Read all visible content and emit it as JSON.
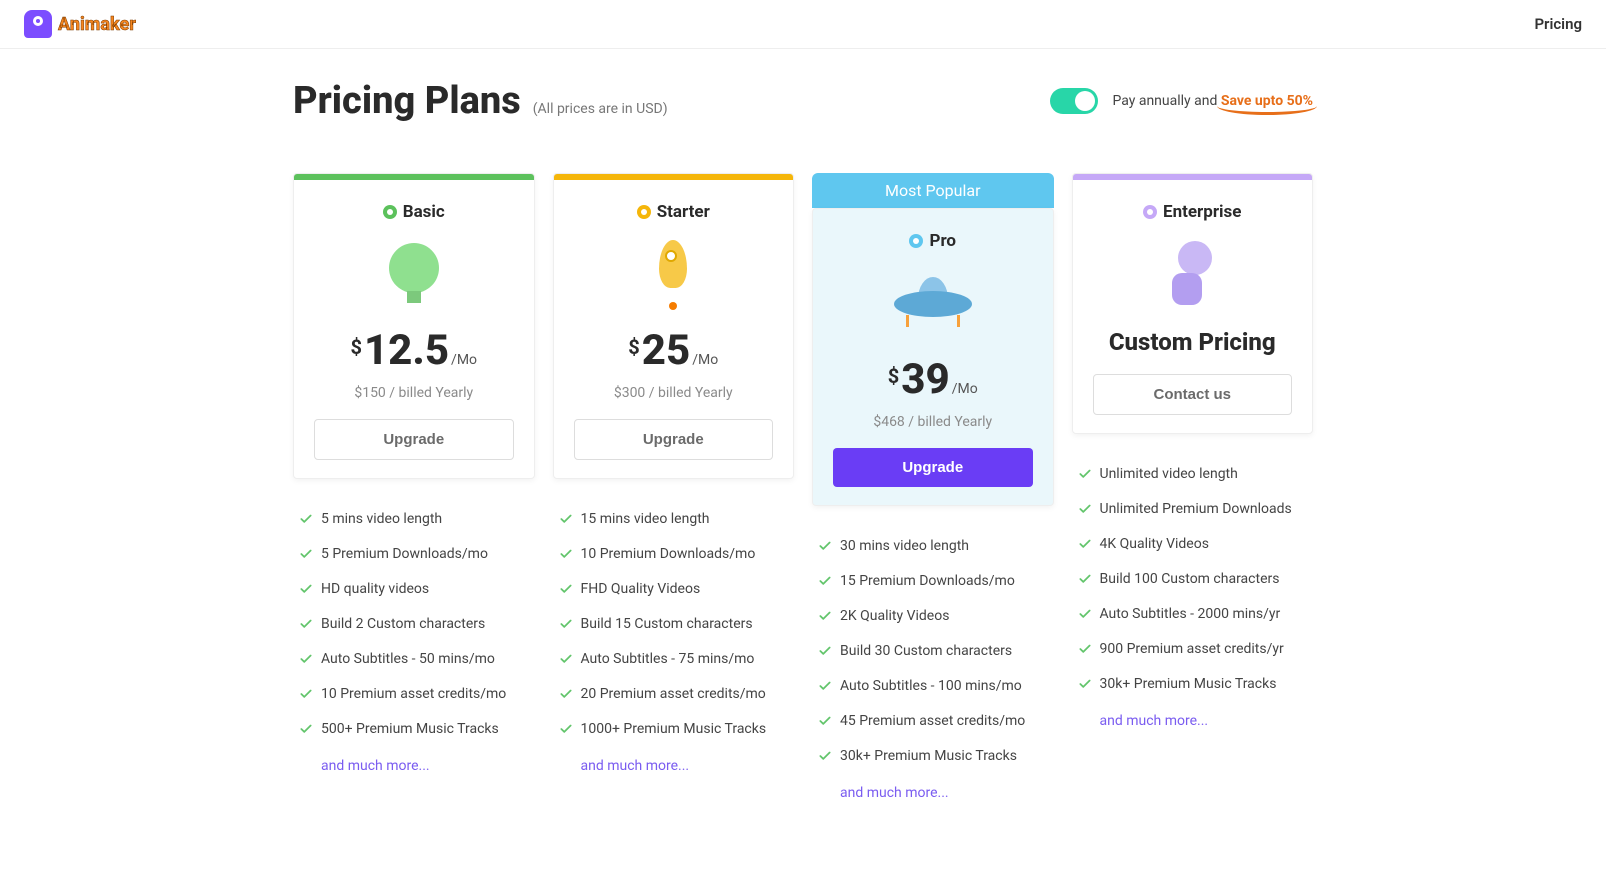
{
  "header": {
    "logo_text": "Animaker",
    "nav_pricing": "Pricing"
  },
  "title": {
    "heading": "Pricing Plans",
    "note": "(All prices are in USD)"
  },
  "toggle": {
    "prefix": "Pay annually and ",
    "save_text": "Save upto 50%",
    "on": true
  },
  "colors": {
    "basic_bar": "#5cc15c",
    "starter_bar": "#f5b60a",
    "pro_bar": "#5fc7ef",
    "enterprise_bar": "#c5a8f7",
    "cta_primary": "#6a3df5",
    "check": "#63c56c",
    "save": "#e76f1a"
  },
  "popular_badge": "Most Popular",
  "more_link": "and much more...",
  "plans": [
    {
      "key": "basic",
      "name": "Basic",
      "bullet_color": "#5cc15c",
      "bar_color": "#5cc15c",
      "currency": "$",
      "amount": "12.5",
      "suffix": "/Mo",
      "billed": "$150 / billed Yearly",
      "cta": "Upgrade",
      "cta_primary": false,
      "custom": false,
      "popular": false,
      "features": [
        "5 mins video length",
        "5 Premium Downloads/mo",
        "HD quality videos",
        "Build 2 Custom characters",
        "Auto Subtitles - 50 mins/mo",
        "10 Premium asset credits/mo",
        "500+ Premium Music Tracks"
      ]
    },
    {
      "key": "starter",
      "name": "Starter",
      "bullet_color": "#f5b60a",
      "bar_color": "#f5b60a",
      "currency": "$",
      "amount": "25",
      "suffix": "/Mo",
      "billed": "$300 / billed Yearly",
      "cta": "Upgrade",
      "cta_primary": false,
      "custom": false,
      "popular": false,
      "features": [
        "15 mins video length",
        "10 Premium Downloads/mo",
        "FHD Quality Videos",
        "Build 15 Custom characters",
        "Auto Subtitles - 75 mins/mo",
        "20 Premium asset credits/mo",
        "1000+ Premium Music Tracks"
      ]
    },
    {
      "key": "pro",
      "name": "Pro",
      "bullet_color": "#5fc7ef",
      "bar_color": "#5fc7ef",
      "currency": "$",
      "amount": "39",
      "suffix": "/Mo",
      "billed": "$468 / billed Yearly",
      "cta": "Upgrade",
      "cta_primary": true,
      "custom": false,
      "popular": true,
      "features": [
        "30 mins video length",
        "15 Premium Downloads/mo",
        "2K Quality Videos",
        "Build 30 Custom characters",
        "Auto Subtitles - 100 mins/mo",
        "45 Premium asset credits/mo",
        "30k+ Premium Music Tracks"
      ]
    },
    {
      "key": "enterprise",
      "name": "Enterprise",
      "bullet_color": "#c5a8f7",
      "bar_color": "#c5a8f7",
      "currency": "",
      "amount": "",
      "suffix": "",
      "billed": "",
      "custom_label": "Custom Pricing",
      "cta": "Contact us",
      "cta_primary": false,
      "custom": true,
      "popular": false,
      "features": [
        "Unlimited video length",
        "Unlimited Premium Downloads",
        "4K Quality Videos",
        "Build 100 Custom characters",
        "Auto Subtitles - 2000 mins/yr",
        "900 Premium asset credits/yr",
        "30k+ Premium Music Tracks"
      ]
    }
  ]
}
